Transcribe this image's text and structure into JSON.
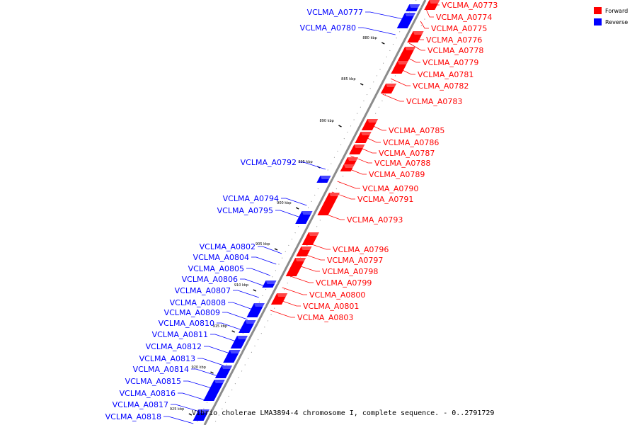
{
  "caption": "Vibrio cholerae LMA3894-4 chromosome I, complete sequence. - 0..2791729",
  "legend": [
    {
      "label": "Forward",
      "color": "#ff0000"
    },
    {
      "label": "Reverse",
      "color": "#0000ff"
    }
  ],
  "colors": {
    "forward": "#ff0000",
    "reverse": "#0000ff",
    "backbone": "#888888"
  },
  "ticks": [
    "880 kbp",
    "885 kbp",
    "890 kbp",
    "895 kbp",
    "900 kbp",
    "905 kbp",
    "910 kbp",
    "915 kbp",
    "920 kbp",
    "925 kbp"
  ],
  "forward_genes": [
    "VCLMA_A0773",
    "VCLMA_A0774",
    "VCLMA_A0775",
    "VCLMA_A0776",
    "VCLMA_A0778",
    "VCLMA_A0779",
    "VCLMA_A0781",
    "VCLMA_A0782",
    "VCLMA_A0783",
    "VCLMA_A0785",
    "VCLMA_A0786",
    "VCLMA_A0787",
    "VCLMA_A0788",
    "VCLMA_A0789",
    "VCLMA_A0790",
    "VCLMA_A0791",
    "VCLMA_A0793",
    "VCLMA_A0796",
    "VCLMA_A0797",
    "VCLMA_A0798",
    "VCLMA_A0799",
    "VCLMA_A0800",
    "VCLMA_A0801",
    "VCLMA_A0803"
  ],
  "reverse_genes": [
    "VCLMA_A0777",
    "VCLMA_A0780",
    "VCLMA_A0792",
    "VCLMA_A0794",
    "VCLMA_A0795",
    "VCLMA_A0802",
    "VCLMA_A0804",
    "VCLMA_A0805",
    "VCLMA_A0806",
    "VCLMA_A0807",
    "VCLMA_A0808",
    "VCLMA_A0809",
    "VCLMA_A0810",
    "VCLMA_A0811",
    "VCLMA_A0812",
    "VCLMA_A0813",
    "VCLMA_A0814",
    "VCLMA_A0815",
    "VCLMA_A0816",
    "VCLMA_A0817",
    "VCLMA_A0818"
  ]
}
